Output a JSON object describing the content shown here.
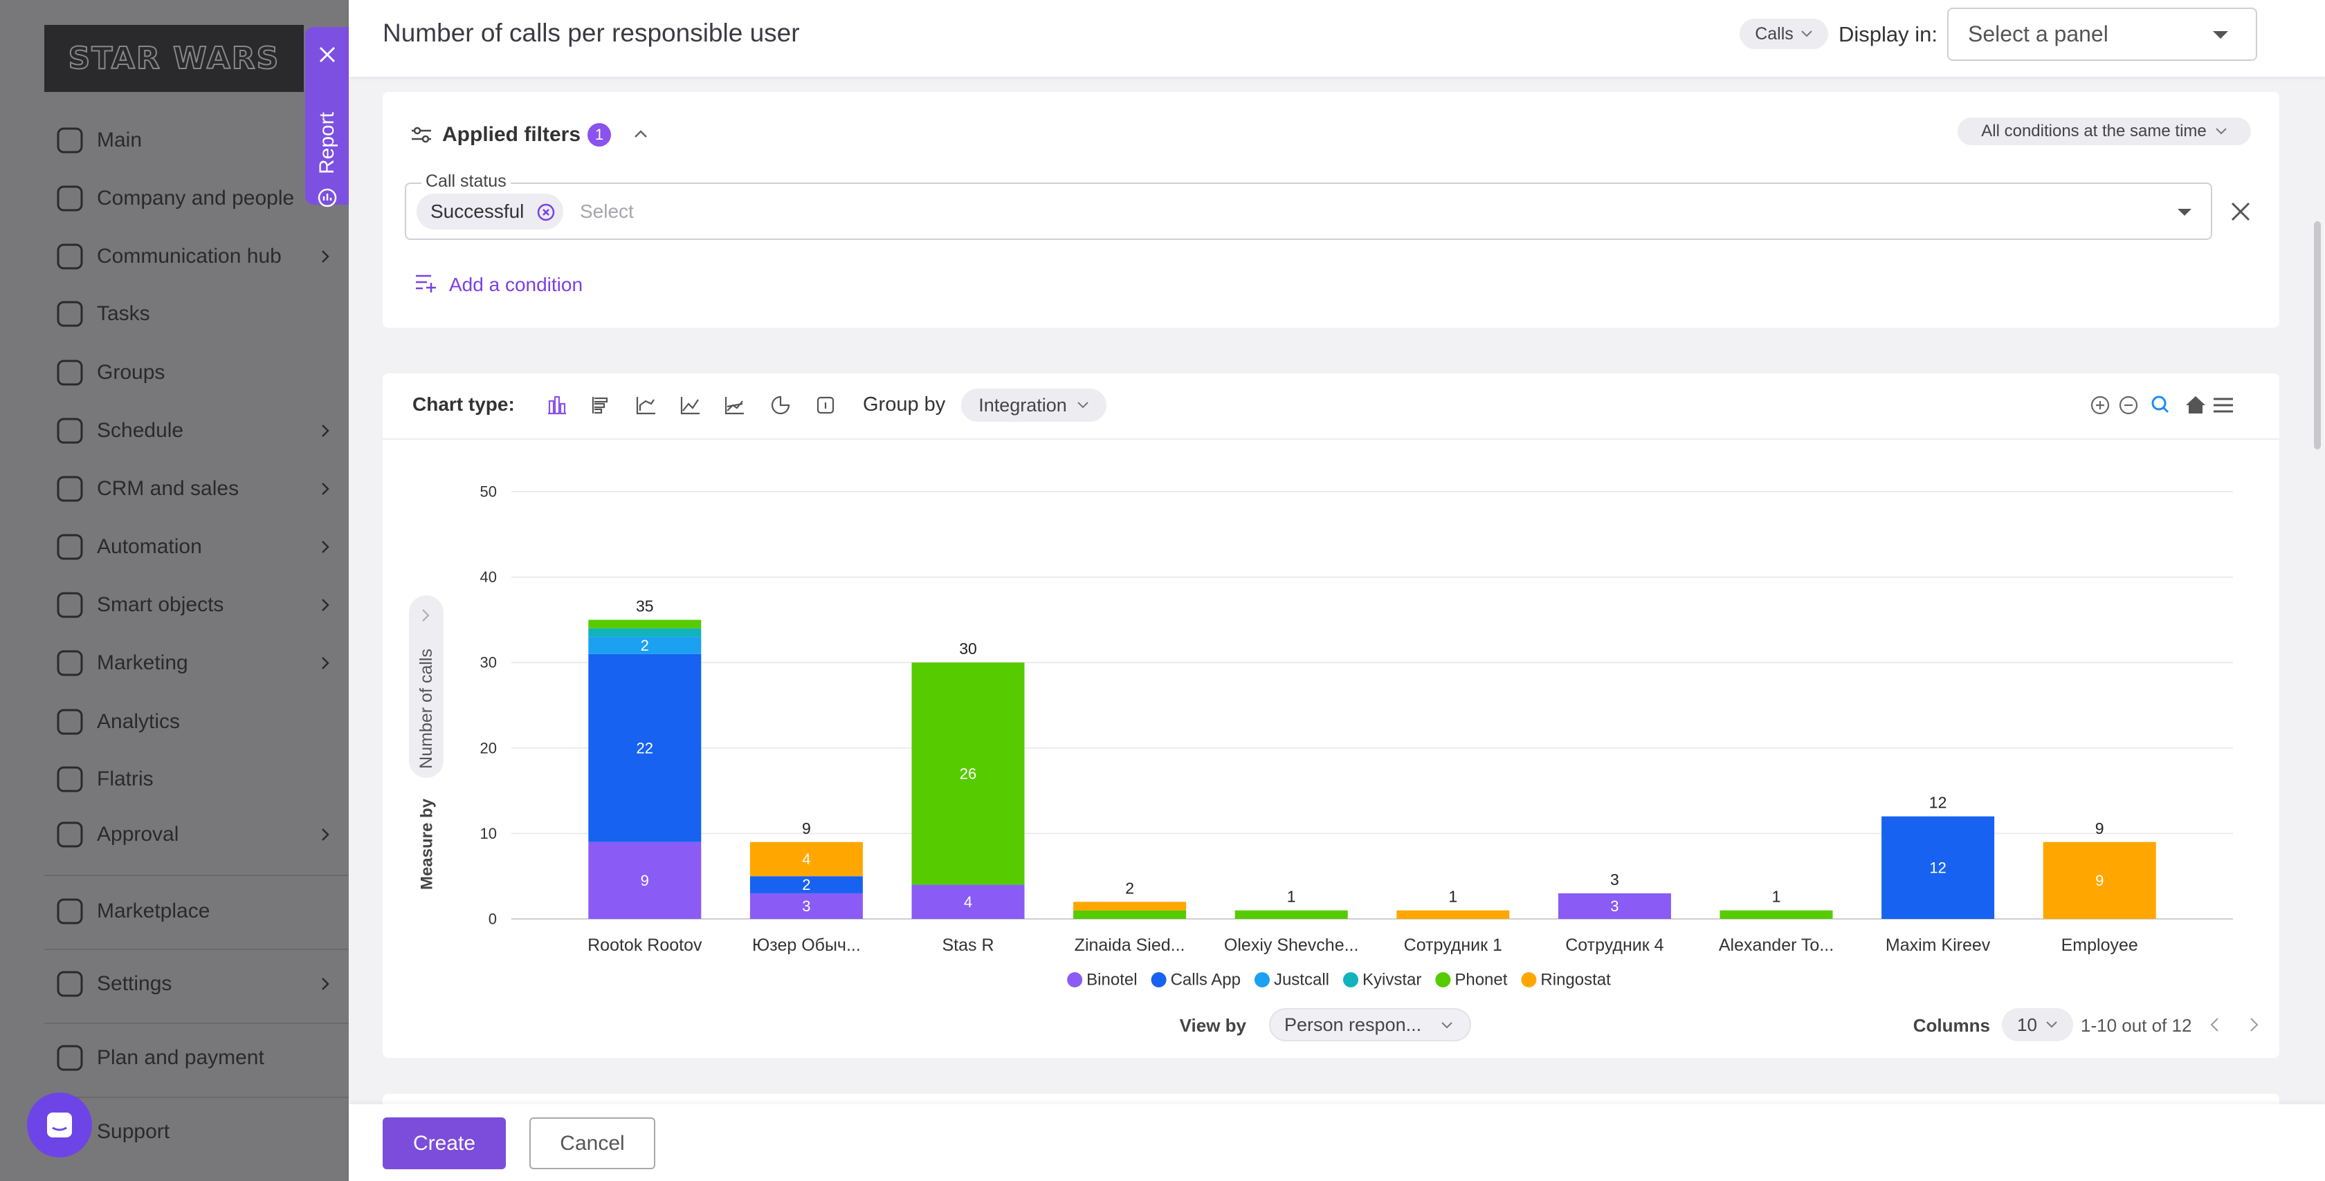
{
  "sidebar": {
    "logo": "STAR WARS",
    "items": [
      {
        "label": "Main",
        "has_submenu": false
      },
      {
        "label": "Company and people",
        "has_submenu": true
      },
      {
        "label": "Communication hub",
        "has_submenu": true
      },
      {
        "label": "Tasks",
        "has_submenu": false
      },
      {
        "label": "Groups",
        "has_submenu": false
      },
      {
        "label": "Schedule",
        "has_submenu": true
      },
      {
        "label": "CRM and sales",
        "has_submenu": true
      },
      {
        "label": "Automation",
        "has_submenu": true
      },
      {
        "label": "Smart objects",
        "has_submenu": true
      },
      {
        "label": "Marketing",
        "has_submenu": true
      },
      {
        "label": "Analytics",
        "has_submenu": false
      },
      {
        "label": "Flatris",
        "has_submenu": false
      },
      {
        "label": "Approval",
        "has_submenu": true
      },
      {
        "label": "Marketplace",
        "has_submenu": false
      },
      {
        "label": "Settings",
        "has_submenu": true
      },
      {
        "label": "Plan and payment",
        "has_submenu": false
      },
      {
        "label": "Support",
        "has_submenu": false
      }
    ]
  },
  "report_tab": {
    "label": "Report"
  },
  "header": {
    "title": "Number of calls per responsible user",
    "data_source": "Calls",
    "display_in_label": "Display in:",
    "panel_placeholder": "Select a panel"
  },
  "filters": {
    "title": "Applied filters",
    "count": 1,
    "mode": "All conditions at the same time",
    "conditions": [
      {
        "field": "Call status",
        "selected": [
          "Successful"
        ],
        "placeholder": "Select"
      }
    ],
    "add_label": "Add a condition"
  },
  "chart_toolbar": {
    "chart_type_label": "Chart type:",
    "group_by_label": "Group by",
    "group_by": "Integration"
  },
  "chart_data": {
    "type": "bar",
    "stacked": true,
    "y_label": "Number of calls",
    "measure_label": "Measure by",
    "categories": [
      "Rootok Rootov",
      "Юзер Обыч...",
      "Stas R",
      "Zinaida Sied...",
      "Olexiy Shevche...",
      "Сотрудник 1",
      "Сотрудник 4",
      "Alexander To...",
      "Maxim Kireev",
      "Employee"
    ],
    "series": [
      {
        "name": "Binotel",
        "color": "#8a5cf5",
        "values": [
          9,
          3,
          4,
          null,
          null,
          null,
          3,
          null,
          null,
          null
        ]
      },
      {
        "name": "Calls App",
        "color": "#1762f1",
        "values": [
          22,
          2,
          null,
          null,
          null,
          null,
          null,
          null,
          12,
          null
        ]
      },
      {
        "name": "Justcall",
        "color": "#1ba0f2",
        "values": [
          2,
          null,
          null,
          null,
          null,
          null,
          null,
          null,
          null,
          null
        ]
      },
      {
        "name": "Kyivstar",
        "color": "#13b3bd",
        "values": [
          1,
          null,
          null,
          null,
          null,
          null,
          null,
          null,
          null,
          null
        ]
      },
      {
        "name": "Phonet",
        "color": "#56cb00",
        "values": [
          1,
          null,
          26,
          1,
          1,
          null,
          null,
          1,
          null,
          null
        ]
      },
      {
        "name": "Ringostat",
        "color": "#ffa600",
        "values": [
          null,
          4,
          null,
          1,
          null,
          1,
          null,
          null,
          null,
          9
        ]
      }
    ],
    "totals": [
      35,
      9,
      30,
      2,
      1,
      1,
      3,
      1,
      12,
      9
    ],
    "ylim": [
      0,
      50
    ],
    "yticks": [
      0,
      10,
      20,
      30,
      40,
      50
    ],
    "grid": true
  },
  "view_by": {
    "label": "View by",
    "value": "Person respon..."
  },
  "pagination": {
    "columns_label": "Columns",
    "columns": 10,
    "range": "1-10 out of 12"
  },
  "footer": {
    "create": "Create",
    "cancel": "Cancel"
  }
}
